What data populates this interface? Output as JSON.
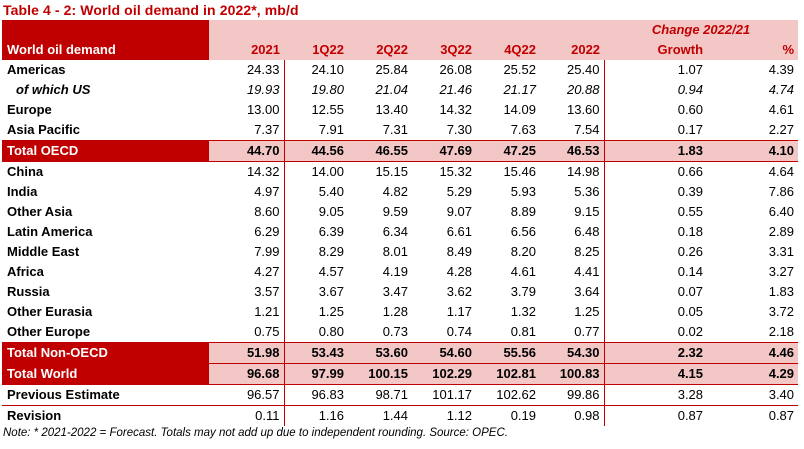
{
  "title": "Table 4 - 2: World oil demand in 2022*, mb/d",
  "header": {
    "change_label": "Change 2022/21",
    "row_label": "World oil demand",
    "columns": [
      "2021",
      "1Q22",
      "2Q22",
      "3Q22",
      "4Q22",
      "2022",
      "Growth",
      "%"
    ]
  },
  "rows": [
    {
      "label": "Americas",
      "values": [
        "24.33",
        "24.10",
        "25.84",
        "26.08",
        "25.52",
        "25.40",
        "1.07",
        "4.39"
      ],
      "kind": "normal"
    },
    {
      "label": "of which US",
      "values": [
        "19.93",
        "19.80",
        "21.04",
        "21.46",
        "21.17",
        "20.88",
        "0.94",
        "4.74"
      ],
      "kind": "sub"
    },
    {
      "label": "Europe",
      "values": [
        "13.00",
        "12.55",
        "13.40",
        "14.32",
        "14.09",
        "13.60",
        "0.60",
        "4.61"
      ],
      "kind": "normal"
    },
    {
      "label": "Asia Pacific",
      "values": [
        "7.37",
        "7.91",
        "7.31",
        "7.30",
        "7.63",
        "7.54",
        "0.17",
        "2.27"
      ],
      "kind": "normal"
    },
    {
      "label": "Total OECD",
      "values": [
        "44.70",
        "44.56",
        "46.55",
        "47.69",
        "47.25",
        "46.53",
        "1.83",
        "4.10"
      ],
      "kind": "total"
    },
    {
      "label": "China",
      "values": [
        "14.32",
        "14.00",
        "15.15",
        "15.32",
        "15.46",
        "14.98",
        "0.66",
        "4.64"
      ],
      "kind": "normal"
    },
    {
      "label": "India",
      "values": [
        "4.97",
        "5.40",
        "4.82",
        "5.29",
        "5.93",
        "5.36",
        "0.39",
        "7.86"
      ],
      "kind": "normal"
    },
    {
      "label": "Other Asia",
      "values": [
        "8.60",
        "9.05",
        "9.59",
        "9.07",
        "8.89",
        "9.15",
        "0.55",
        "6.40"
      ],
      "kind": "normal"
    },
    {
      "label": "Latin America",
      "values": [
        "6.29",
        "6.39",
        "6.34",
        "6.61",
        "6.56",
        "6.48",
        "0.18",
        "2.89"
      ],
      "kind": "normal"
    },
    {
      "label": "Middle East",
      "values": [
        "7.99",
        "8.29",
        "8.01",
        "8.49",
        "8.20",
        "8.25",
        "0.26",
        "3.31"
      ],
      "kind": "normal"
    },
    {
      "label": "Africa",
      "values": [
        "4.27",
        "4.57",
        "4.19",
        "4.28",
        "4.61",
        "4.41",
        "0.14",
        "3.27"
      ],
      "kind": "normal"
    },
    {
      "label": "Russia",
      "values": [
        "3.57",
        "3.67",
        "3.47",
        "3.62",
        "3.79",
        "3.64",
        "0.07",
        "1.83"
      ],
      "kind": "normal"
    },
    {
      "label": "Other Eurasia",
      "values": [
        "1.21",
        "1.25",
        "1.28",
        "1.17",
        "1.32",
        "1.25",
        "0.05",
        "3.72"
      ],
      "kind": "normal"
    },
    {
      "label": "Other Europe",
      "values": [
        "0.75",
        "0.80",
        "0.73",
        "0.74",
        "0.81",
        "0.77",
        "0.02",
        "2.18"
      ],
      "kind": "normal"
    },
    {
      "label": "Total Non-OECD",
      "values": [
        "51.98",
        "53.43",
        "53.60",
        "54.60",
        "55.56",
        "54.30",
        "2.32",
        "4.46"
      ],
      "kind": "total"
    },
    {
      "label": "Total World",
      "values": [
        "96.68",
        "97.99",
        "100.15",
        "102.29",
        "102.81",
        "100.83",
        "4.15",
        "4.29"
      ],
      "kind": "total"
    },
    {
      "label": "Previous Estimate",
      "values": [
        "96.57",
        "96.83",
        "98.71",
        "101.17",
        "102.62",
        "99.86",
        "3.28",
        "3.40"
      ],
      "kind": "normal"
    },
    {
      "label": "Revision",
      "values": [
        "0.11",
        "1.16",
        "1.44",
        "1.12",
        "0.19",
        "0.98",
        "0.87",
        "0.87"
      ],
      "kind": "normal"
    }
  ],
  "note": "Note: * 2021-2022 = Forecast. Totals may not add up due to independent rounding. Source: OPEC.",
  "colors": {
    "accent_red": "#c00000",
    "pink": "#f4c7c7"
  }
}
